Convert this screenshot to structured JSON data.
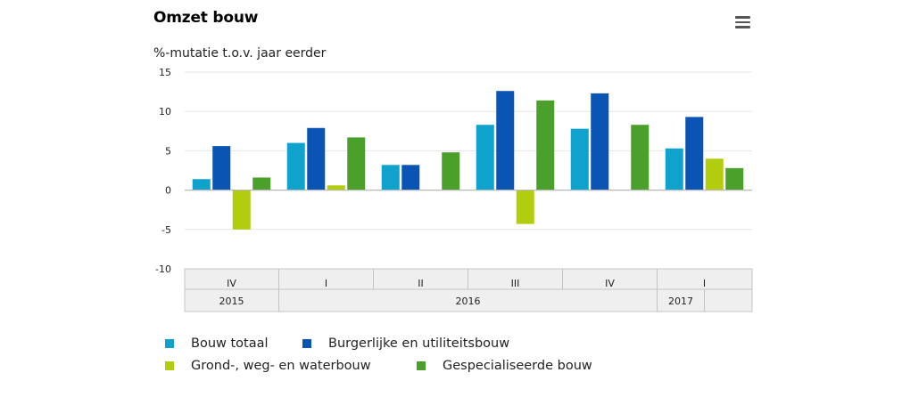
{
  "title": "Omzet bouw",
  "colors": {
    "bouw_totaal": "#0fa2cc",
    "burgerlijke": "#0a55b3",
    "grond": "#b2cc0e",
    "gespecialiseerd": "#4aa02a",
    "grid": "#e6e6e6",
    "axis_band": "#efefef"
  },
  "menu_icon": "hamburger-menu-icon",
  "chart_data": {
    "type": "bar",
    "title": "Omzet bouw",
    "subtitle": "%-mutatie t.o.v. jaar eerder",
    "ylabel": "%-mutatie t.o.v. jaar eerder",
    "xlabel": "",
    "ylim": [
      -10,
      15
    ],
    "yticks": [
      "15",
      "10",
      "5",
      "0",
      "-5",
      "-10"
    ],
    "grid": true,
    "legend_position": "bottom",
    "categories": [
      "IV",
      "I",
      "II",
      "III",
      "IV",
      "I"
    ],
    "year_groups": [
      {
        "label": "2015",
        "span": 1
      },
      {
        "label": "2016",
        "span": 4
      },
      {
        "label": "2017",
        "span": 1
      }
    ],
    "series": [
      {
        "name": "Bouw totaal",
        "color_key": "bouw_totaal",
        "values": [
          1.4,
          6.0,
          3.2,
          8.3,
          7.8,
          5.3
        ]
      },
      {
        "name": "Burgerlijke en utiliteitsbouw",
        "color_key": "burgerlijke",
        "values": [
          5.6,
          7.9,
          3.2,
          12.6,
          12.3,
          9.3
        ]
      },
      {
        "name": "Grond-, weg- en waterbouw",
        "color_key": "grond",
        "values": [
          -5.0,
          0.6,
          null,
          -4.3,
          null,
          4.0
        ]
      },
      {
        "name": "Gespecialiseerde bouw",
        "color_key": "gespecialiseerd",
        "values": [
          1.6,
          6.7,
          4.8,
          11.4,
          8.3,
          2.8
        ]
      }
    ]
  }
}
